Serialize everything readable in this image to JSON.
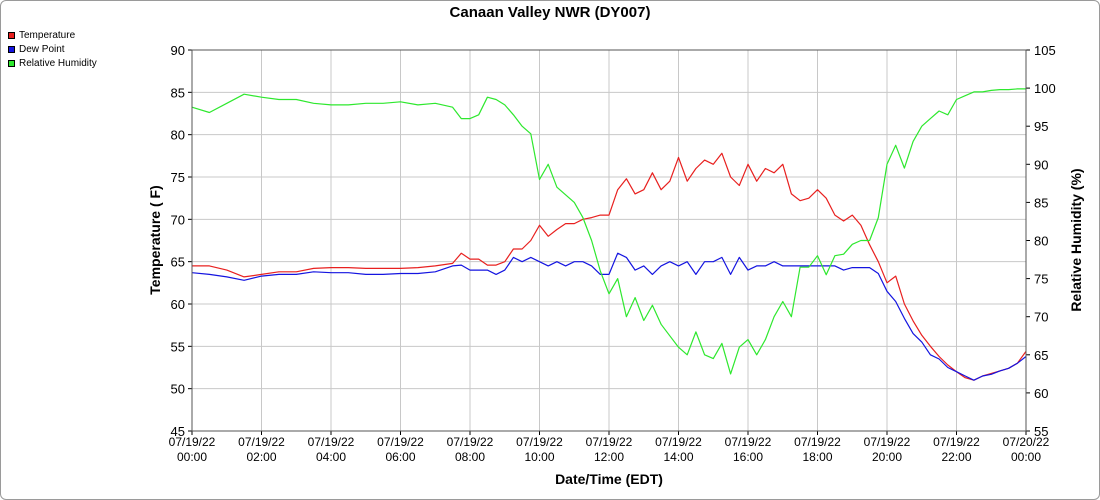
{
  "title": "Canaan Valley NWR (DY007)",
  "legend": [
    {
      "label": "Temperature",
      "color": "#e8201f"
    },
    {
      "label": "Dew Point",
      "color": "#1414e0"
    },
    {
      "label": "Relative Humidity",
      "color": "#2ee82e"
    }
  ],
  "chart_data": {
    "type": "line",
    "title": "Canaan Valley NWR (DY007)",
    "xlabel": "Date/Time (EDT)",
    "ylabel": "Temperature ( F)",
    "y2label": "Relative Humidity (%)",
    "xlim": [
      0,
      24
    ],
    "ylim": [
      45,
      90
    ],
    "y2lim": [
      55,
      105
    ],
    "yticks": [
      "45",
      "50",
      "55",
      "60",
      "65",
      "70",
      "75",
      "80",
      "85",
      "90"
    ],
    "y2ticks": [
      "55",
      "60",
      "65",
      "70",
      "75",
      "80",
      "85",
      "90",
      "95",
      "100",
      "105"
    ],
    "xticks": [
      {
        "x": 0,
        "date": "07/19/22",
        "time": "00:00"
      },
      {
        "x": 2,
        "date": "07/19/22",
        "time": "02:00"
      },
      {
        "x": 4,
        "date": "07/19/22",
        "time": "04:00"
      },
      {
        "x": 6,
        "date": "07/19/22",
        "time": "06:00"
      },
      {
        "x": 8,
        "date": "07/19/22",
        "time": "08:00"
      },
      {
        "x": 10,
        "date": "07/19/22",
        "time": "10:00"
      },
      {
        "x": 12,
        "date": "07/19/22",
        "time": "12:00"
      },
      {
        "x": 14,
        "date": "07/19/22",
        "time": "14:00"
      },
      {
        "x": 16,
        "date": "07/19/22",
        "time": "16:00"
      },
      {
        "x": 18,
        "date": "07/19/22",
        "time": "18:00"
      },
      {
        "x": 20,
        "date": "07/19/22",
        "time": "20:00"
      },
      {
        "x": 22,
        "date": "07/19/22",
        "time": "22:00"
      },
      {
        "x": 24,
        "date": "07/20/22",
        "time": "00:00"
      }
    ],
    "grid": true,
    "legend_position": "top-left",
    "series": [
      {
        "name": "Temperature",
        "axis": "left",
        "color": "#e8201f",
        "x": [
          0,
          0.5,
          1,
          1.5,
          2,
          2.5,
          3,
          3.5,
          4,
          4.5,
          5,
          5.5,
          6,
          6.5,
          7,
          7.5,
          7.75,
          8,
          8.25,
          8.5,
          8.75,
          9,
          9.25,
          9.5,
          9.75,
          10,
          10.25,
          10.5,
          10.75,
          11,
          11.25,
          11.5,
          11.75,
          12,
          12.25,
          12.5,
          12.75,
          13,
          13.25,
          13.5,
          13.75,
          14,
          14.25,
          14.5,
          14.75,
          15,
          15.25,
          15.5,
          15.75,
          16,
          16.25,
          16.5,
          16.75,
          17,
          17.25,
          17.5,
          17.75,
          18,
          18.25,
          18.5,
          18.75,
          19,
          19.25,
          19.5,
          19.75,
          20,
          20.25,
          20.5,
          20.75,
          21,
          21.25,
          21.5,
          21.75,
          22,
          22.25,
          22.5,
          22.75,
          23,
          23.25,
          23.5,
          23.75,
          24
        ],
        "values": [
          64.5,
          64.5,
          64,
          63.2,
          63.5,
          63.8,
          63.8,
          64.2,
          64.3,
          64.3,
          64.2,
          64.2,
          64.2,
          64.3,
          64.5,
          64.8,
          66,
          65.3,
          65.3,
          64.6,
          64.6,
          65,
          66.5,
          66.5,
          67.5,
          69.3,
          68,
          68.8,
          69.5,
          69.5,
          70,
          70.2,
          70.5,
          70.5,
          73.5,
          74.8,
          73,
          73.5,
          75.5,
          73.5,
          74.5,
          77.3,
          74.5,
          76,
          77,
          76.5,
          77.8,
          75,
          74,
          76.5,
          74.5,
          76,
          75.5,
          76.5,
          73,
          72.2,
          72.5,
          73.5,
          72.5,
          70.5,
          69.8,
          70.5,
          69.3,
          67,
          65,
          62.5,
          63.3,
          60,
          58,
          56.3,
          55,
          53.8,
          52.8,
          52,
          51.3,
          51,
          51.5,
          51.8,
          52.1,
          52.4,
          53,
          54.4
        ]
      },
      {
        "name": "Dew Point",
        "axis": "left",
        "color": "#1414e0",
        "x": [
          0,
          0.5,
          1,
          1.5,
          2,
          2.5,
          3,
          3.5,
          4,
          4.5,
          5,
          5.5,
          6,
          6.5,
          7,
          7.5,
          7.75,
          8,
          8.25,
          8.5,
          8.75,
          9,
          9.25,
          9.5,
          9.75,
          10,
          10.25,
          10.5,
          10.75,
          11,
          11.25,
          11.5,
          11.75,
          12,
          12.25,
          12.5,
          12.75,
          13,
          13.25,
          13.5,
          13.75,
          14,
          14.25,
          14.5,
          14.75,
          15,
          15.25,
          15.5,
          15.75,
          16,
          16.25,
          16.5,
          16.75,
          17,
          17.25,
          17.5,
          17.75,
          18,
          18.25,
          18.5,
          18.75,
          19,
          19.25,
          19.5,
          19.75,
          20,
          20.25,
          20.5,
          20.75,
          21,
          21.25,
          21.5,
          21.75,
          22,
          22.25,
          22.5,
          22.75,
          23,
          23.25,
          23.5,
          23.75,
          24
        ],
        "values": [
          63.7,
          63.5,
          63.2,
          62.8,
          63.3,
          63.5,
          63.5,
          63.8,
          63.7,
          63.7,
          63.5,
          63.5,
          63.6,
          63.6,
          63.8,
          64.5,
          64.6,
          64,
          64,
          64,
          63.5,
          64,
          65.5,
          65,
          65.5,
          65,
          64.5,
          65,
          64.5,
          65,
          65,
          64.5,
          63.5,
          63.5,
          66,
          65.5,
          64,
          64.5,
          63.5,
          64.5,
          65,
          64.5,
          65,
          63.5,
          65,
          65,
          65.5,
          63.5,
          65.5,
          64,
          64.5,
          64.5,
          65,
          64.5,
          64.5,
          64.5,
          64.5,
          64.5,
          64.5,
          64.5,
          64,
          64.3,
          64.3,
          64.3,
          63.6,
          61.5,
          60.3,
          58.3,
          56.5,
          55.5,
          54,
          53.5,
          52.5,
          52,
          51.5,
          51,
          51.5,
          51.7,
          52.1,
          52.4,
          53,
          53.8
        ]
      },
      {
        "name": "Relative Humidity",
        "axis": "right",
        "color": "#2ee82e",
        "x": [
          0,
          0.5,
          1,
          1.5,
          2,
          2.5,
          3,
          3.5,
          4,
          4.5,
          5,
          5.5,
          6,
          6.5,
          7,
          7.5,
          7.75,
          8,
          8.25,
          8.5,
          8.75,
          9,
          9.25,
          9.5,
          9.75,
          10,
          10.25,
          10.5,
          10.75,
          11,
          11.25,
          11.5,
          11.75,
          12,
          12.25,
          12.5,
          12.75,
          13,
          13.25,
          13.5,
          13.75,
          14,
          14.25,
          14.5,
          14.75,
          15,
          15.25,
          15.5,
          15.75,
          16,
          16.25,
          16.5,
          16.75,
          17,
          17.25,
          17.5,
          17.75,
          18,
          18.25,
          18.5,
          18.75,
          19,
          19.25,
          19.5,
          19.75,
          20,
          20.25,
          20.5,
          20.75,
          21,
          21.25,
          21.5,
          21.75,
          22,
          22.25,
          22.5,
          22.75,
          23,
          23.25,
          23.5,
          23.75,
          24
        ],
        "values": [
          97.5,
          96.8,
          98,
          99.2,
          98.8,
          98.5,
          98.5,
          98,
          97.8,
          97.8,
          98,
          98,
          98.2,
          97.8,
          98,
          97.5,
          96,
          96,
          96.5,
          98.8,
          98.5,
          97.8,
          96.5,
          95,
          94,
          88,
          90,
          87,
          86,
          85,
          83,
          80,
          76,
          73,
          75,
          70,
          72.5,
          69.5,
          71.5,
          69,
          67.5,
          66,
          65,
          68,
          65,
          64.5,
          66.5,
          62.5,
          66,
          67,
          65,
          67,
          70,
          72,
          70,
          76.5,
          76.5,
          78,
          75.5,
          78,
          78.2,
          79.5,
          80,
          80,
          83,
          90,
          92.5,
          89.5,
          93,
          95,
          96,
          97,
          96.5,
          98.5,
          99,
          99.5,
          99.5,
          99.7,
          99.8,
          99.8,
          99.9,
          99.9
        ]
      }
    ]
  }
}
